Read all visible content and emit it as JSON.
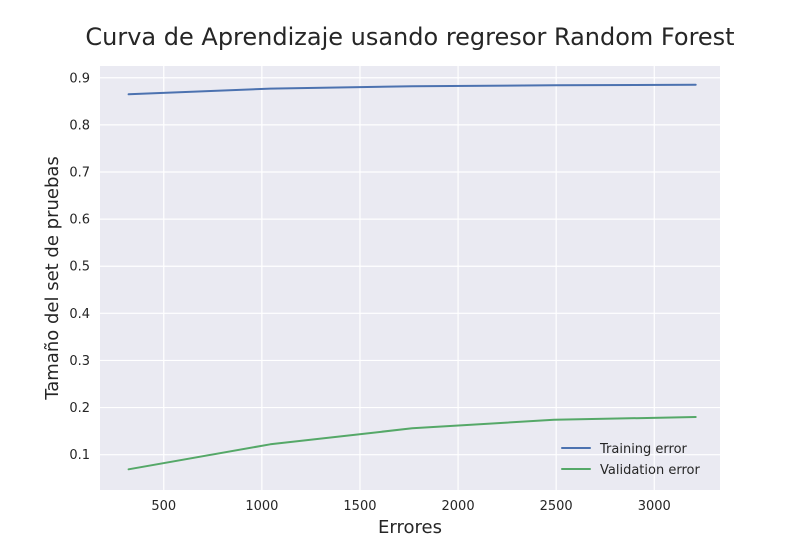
{
  "chart_data": {
    "type": "line",
    "title": "Curva de Aprendizaje usando regresor Random Forest",
    "xlabel": "Errores",
    "ylabel": "Tamaño del set de pruebas",
    "xlim": [
      175,
      3335
    ],
    "ylim": [
      0.025,
      0.925
    ],
    "x_ticks": [
      500,
      1000,
      1500,
      2000,
      2500,
      3000
    ],
    "y_ticks": [
      0.1,
      0.2,
      0.3,
      0.4,
      0.5,
      0.6,
      0.7,
      0.8,
      0.9
    ],
    "grid": true,
    "legend_position": "lower-right",
    "series": [
      {
        "name": "Training error",
        "color": "#4c72b0",
        "x": [
          321,
          1043,
          1766,
          2489,
          3211
        ],
        "y": [
          0.865,
          0.877,
          0.882,
          0.884,
          0.885
        ]
      },
      {
        "name": "Validation error",
        "color": "#55a868",
        "x": [
          321,
          1043,
          1766,
          2489,
          3211
        ],
        "y": [
          0.069,
          0.122,
          0.156,
          0.174,
          0.18
        ]
      }
    ]
  }
}
